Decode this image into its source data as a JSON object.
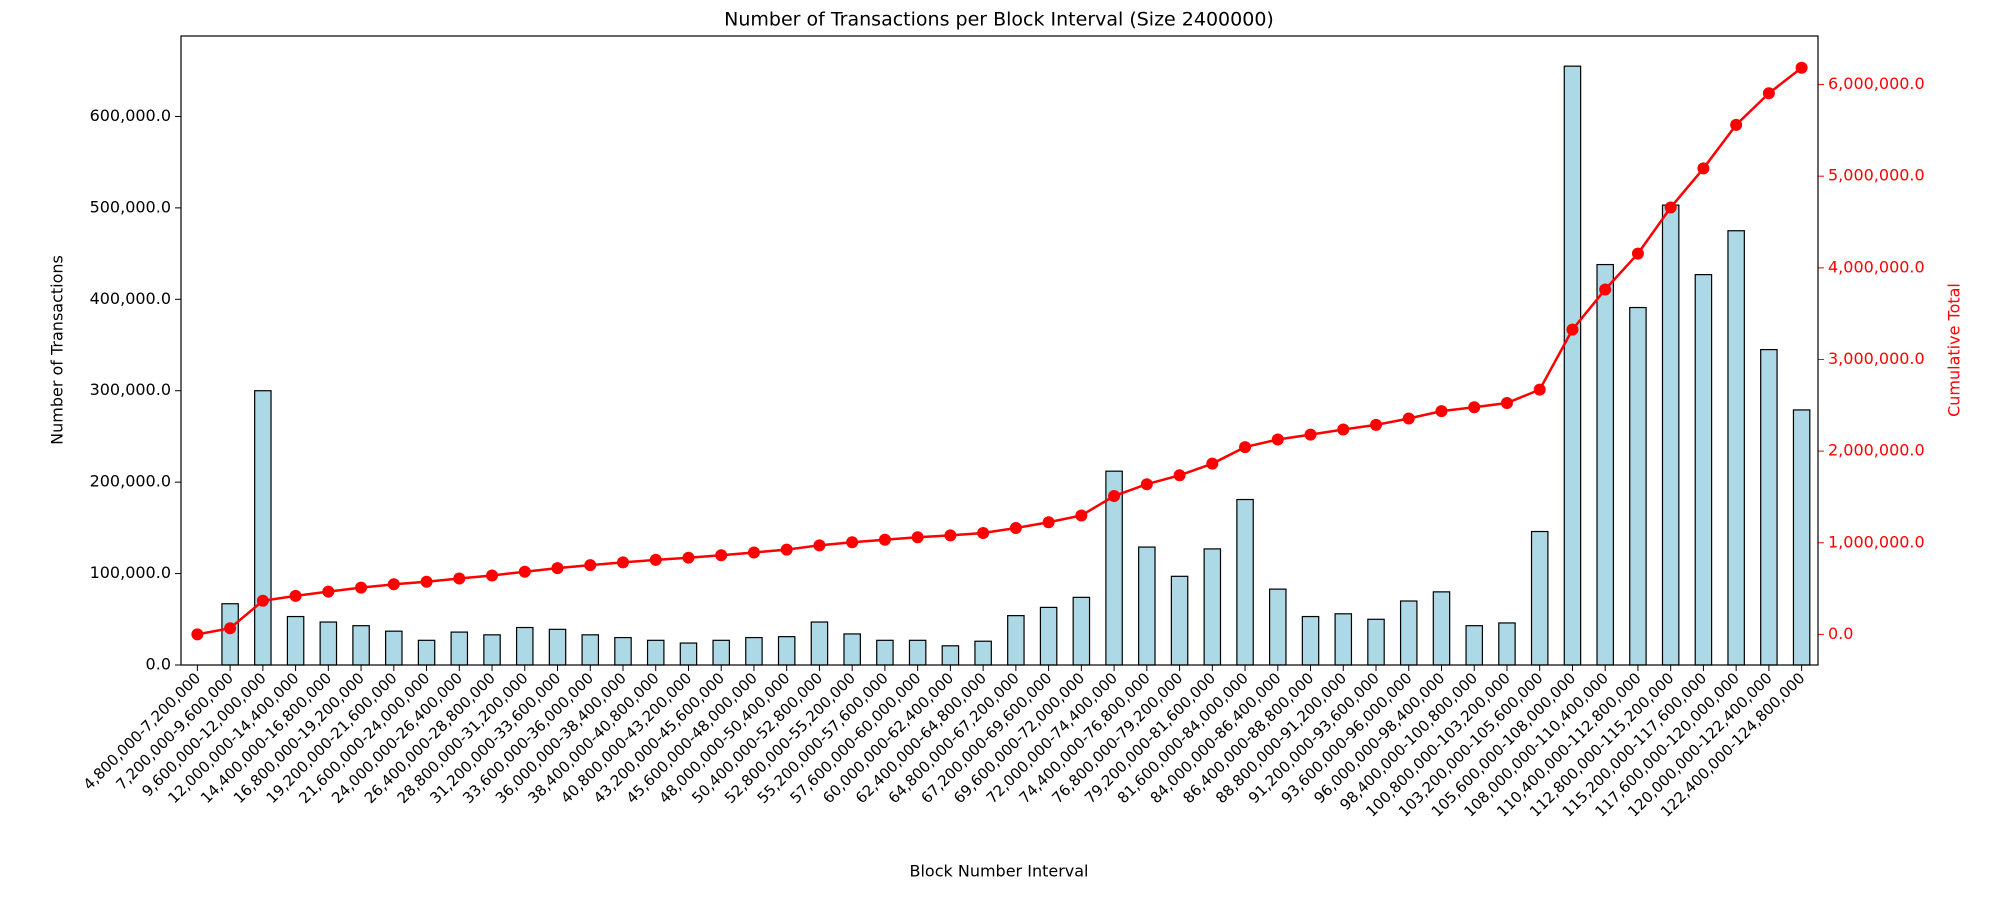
{
  "chart_data": {
    "type": "bar",
    "title": "Number of Transactions per Block Interval (Size 2400000)",
    "x_label": "Block Number Interval",
    "y_label": "Number of Transactions",
    "y2_label": "Cumulative Total",
    "categories": [
      "4,800,000-7,200,000",
      "7,200,000-9,600,000",
      "9,600,000-12,000,000",
      "12,000,000-14,400,000",
      "14,400,000-16,800,000",
      "16,800,000-19,200,000",
      "19,200,000-21,600,000",
      "21,600,000-24,000,000",
      "24,000,000-26,400,000",
      "26,400,000-28,800,000",
      "28,800,000-31,200,000",
      "31,200,000-33,600,000",
      "33,600,000-36,000,000",
      "36,000,000-38,400,000",
      "38,400,000-40,800,000",
      "40,800,000-43,200,000",
      "43,200,000-45,600,000",
      "45,600,000-48,000,000",
      "48,000,000-50,400,000",
      "50,400,000-52,800,000",
      "52,800,000-55,200,000",
      "55,200,000-57,600,000",
      "57,600,000-60,000,000",
      "60,000,000-62,400,000",
      "62,400,000-64,800,000",
      "64,800,000-67,200,000",
      "67,200,000-69,600,000",
      "69,600,000-72,000,000",
      "72,000,000-74,400,000",
      "74,400,000-76,800,000",
      "76,800,000-79,200,000",
      "79,200,000-81,600,000",
      "81,600,000-84,000,000",
      "84,000,000-86,400,000",
      "86,400,000-88,800,000",
      "88,800,000-91,200,000",
      "91,200,000-93,600,000",
      "93,600,000-96,000,000",
      "96,000,000-98,400,000",
      "98,400,000-100,800,000",
      "100,800,000-103,200,000",
      "103,200,000-105,600,000",
      "105,600,000-108,000,000",
      "108,000,000-110,400,000",
      "110,400,000-112,800,000",
      "112,800,000-115,200,000",
      "115,200,000-117,600,000",
      "117,600,000-120,000,000",
      "120,000,000-122,400,000",
      "122,400,000-124,800,000"
    ],
    "series": [
      {
        "name": "Number of Transactions",
        "type": "bar",
        "color": "#add8e6",
        "values": [
          0,
          67000,
          300000,
          53000,
          47000,
          43000,
          37000,
          27000,
          36000,
          33000,
          41000,
          39000,
          33000,
          30000,
          27000,
          24000,
          27000,
          30000,
          31000,
          47000,
          34000,
          27000,
          27000,
          21000,
          26000,
          54000,
          63000,
          74000,
          212000,
          129000,
          97000,
          127000,
          181000,
          83000,
          53000,
          56000,
          50000,
          70000,
          80000,
          43000,
          46000,
          146000,
          655000,
          438000,
          391000,
          503000,
          427000,
          475000,
          345000,
          279000
        ]
      },
      {
        "name": "Cumulative Total",
        "type": "line",
        "axis": "y2",
        "color": "#ff0000",
        "values": [
          0,
          67000,
          367000,
          420000,
          467000,
          510000,
          547000,
          574000,
          610000,
          643000,
          684000,
          723000,
          756000,
          786000,
          813000,
          837000,
          864000,
          894000,
          925000,
          972000,
          1006000,
          1033000,
          1060000,
          1081000,
          1107000,
          1161000,
          1224000,
          1298000,
          1510000,
          1639000,
          1736000,
          1863000,
          2044000,
          2127000,
          2180000,
          2236000,
          2286000,
          2356000,
          2436000,
          2479000,
          2525000,
          2671000,
          3326000,
          3764000,
          4155000,
          4658000,
          5085000,
          5560000,
          5905000,
          6184000
        ]
      }
    ],
    "ylim": [
      0,
      688000
    ],
    "yticks": [
      {
        "value": 0,
        "label": "0.0"
      },
      {
        "value": 100000,
        "label": "100,000.0"
      },
      {
        "value": 200000,
        "label": "200,000.0"
      },
      {
        "value": 300000,
        "label": "300,000.0"
      },
      {
        "value": 400000,
        "label": "400,000.0"
      },
      {
        "value": 500000,
        "label": "500,000.0"
      },
      {
        "value": 600000,
        "label": "600,000.0"
      }
    ],
    "y2lim": [
      -334000,
      6530000
    ],
    "y2ticks": [
      {
        "value": 0,
        "label": "0.0"
      },
      {
        "value": 1000000,
        "label": "1,000,000.0"
      },
      {
        "value": 2000000,
        "label": "2,000,000.0"
      },
      {
        "value": 3000000,
        "label": "3,000,000.0"
      },
      {
        "value": 4000000,
        "label": "4,000,000.0"
      },
      {
        "value": 5000000,
        "label": "5,000,000.0"
      },
      {
        "value": 6000000,
        "label": "6,000,000.0"
      }
    ],
    "grid": false
  }
}
